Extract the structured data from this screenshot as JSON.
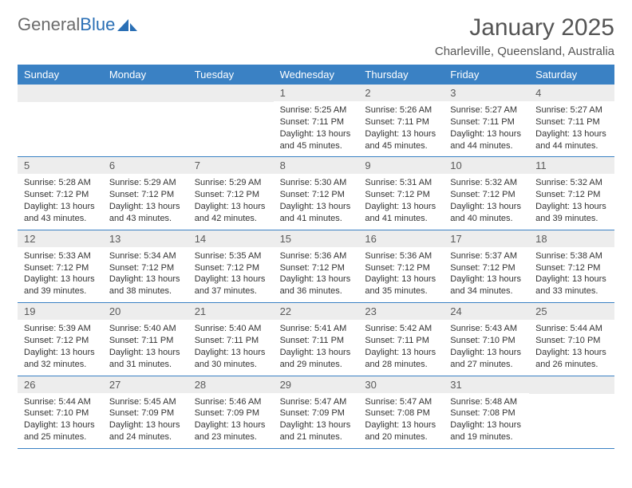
{
  "logo": {
    "text1": "General",
    "text2": "Blue"
  },
  "header": {
    "month": "January 2025",
    "location": "Charleville, Queensland, Australia"
  },
  "colors": {
    "header_bg": "#3a81c4",
    "daynum_bg": "#ededed",
    "accent": "#2a6fb5"
  },
  "weekdays": [
    "Sunday",
    "Monday",
    "Tuesday",
    "Wednesday",
    "Thursday",
    "Friday",
    "Saturday"
  ],
  "weeks": [
    [
      null,
      null,
      null,
      {
        "n": "1",
        "sunrise": "5:25 AM",
        "sunset": "7:11 PM",
        "dl": "13 hours and 45 minutes."
      },
      {
        "n": "2",
        "sunrise": "5:26 AM",
        "sunset": "7:11 PM",
        "dl": "13 hours and 45 minutes."
      },
      {
        "n": "3",
        "sunrise": "5:27 AM",
        "sunset": "7:11 PM",
        "dl": "13 hours and 44 minutes."
      },
      {
        "n": "4",
        "sunrise": "5:27 AM",
        "sunset": "7:11 PM",
        "dl": "13 hours and 44 minutes."
      }
    ],
    [
      {
        "n": "5",
        "sunrise": "5:28 AM",
        "sunset": "7:12 PM",
        "dl": "13 hours and 43 minutes."
      },
      {
        "n": "6",
        "sunrise": "5:29 AM",
        "sunset": "7:12 PM",
        "dl": "13 hours and 43 minutes."
      },
      {
        "n": "7",
        "sunrise": "5:29 AM",
        "sunset": "7:12 PM",
        "dl": "13 hours and 42 minutes."
      },
      {
        "n": "8",
        "sunrise": "5:30 AM",
        "sunset": "7:12 PM",
        "dl": "13 hours and 41 minutes."
      },
      {
        "n": "9",
        "sunrise": "5:31 AM",
        "sunset": "7:12 PM",
        "dl": "13 hours and 41 minutes."
      },
      {
        "n": "10",
        "sunrise": "5:32 AM",
        "sunset": "7:12 PM",
        "dl": "13 hours and 40 minutes."
      },
      {
        "n": "11",
        "sunrise": "5:32 AM",
        "sunset": "7:12 PM",
        "dl": "13 hours and 39 minutes."
      }
    ],
    [
      {
        "n": "12",
        "sunrise": "5:33 AM",
        "sunset": "7:12 PM",
        "dl": "13 hours and 39 minutes."
      },
      {
        "n": "13",
        "sunrise": "5:34 AM",
        "sunset": "7:12 PM",
        "dl": "13 hours and 38 minutes."
      },
      {
        "n": "14",
        "sunrise": "5:35 AM",
        "sunset": "7:12 PM",
        "dl": "13 hours and 37 minutes."
      },
      {
        "n": "15",
        "sunrise": "5:36 AM",
        "sunset": "7:12 PM",
        "dl": "13 hours and 36 minutes."
      },
      {
        "n": "16",
        "sunrise": "5:36 AM",
        "sunset": "7:12 PM",
        "dl": "13 hours and 35 minutes."
      },
      {
        "n": "17",
        "sunrise": "5:37 AM",
        "sunset": "7:12 PM",
        "dl": "13 hours and 34 minutes."
      },
      {
        "n": "18",
        "sunrise": "5:38 AM",
        "sunset": "7:12 PM",
        "dl": "13 hours and 33 minutes."
      }
    ],
    [
      {
        "n": "19",
        "sunrise": "5:39 AM",
        "sunset": "7:12 PM",
        "dl": "13 hours and 32 minutes."
      },
      {
        "n": "20",
        "sunrise": "5:40 AM",
        "sunset": "7:11 PM",
        "dl": "13 hours and 31 minutes."
      },
      {
        "n": "21",
        "sunrise": "5:40 AM",
        "sunset": "7:11 PM",
        "dl": "13 hours and 30 minutes."
      },
      {
        "n": "22",
        "sunrise": "5:41 AM",
        "sunset": "7:11 PM",
        "dl": "13 hours and 29 minutes."
      },
      {
        "n": "23",
        "sunrise": "5:42 AM",
        "sunset": "7:11 PM",
        "dl": "13 hours and 28 minutes."
      },
      {
        "n": "24",
        "sunrise": "5:43 AM",
        "sunset": "7:10 PM",
        "dl": "13 hours and 27 minutes."
      },
      {
        "n": "25",
        "sunrise": "5:44 AM",
        "sunset": "7:10 PM",
        "dl": "13 hours and 26 minutes."
      }
    ],
    [
      {
        "n": "26",
        "sunrise": "5:44 AM",
        "sunset": "7:10 PM",
        "dl": "13 hours and 25 minutes."
      },
      {
        "n": "27",
        "sunrise": "5:45 AM",
        "sunset": "7:09 PM",
        "dl": "13 hours and 24 minutes."
      },
      {
        "n": "28",
        "sunrise": "5:46 AM",
        "sunset": "7:09 PM",
        "dl": "13 hours and 23 minutes."
      },
      {
        "n": "29",
        "sunrise": "5:47 AM",
        "sunset": "7:09 PM",
        "dl": "13 hours and 21 minutes."
      },
      {
        "n": "30",
        "sunrise": "5:47 AM",
        "sunset": "7:08 PM",
        "dl": "13 hours and 20 minutes."
      },
      {
        "n": "31",
        "sunrise": "5:48 AM",
        "sunset": "7:08 PM",
        "dl": "13 hours and 19 minutes."
      },
      null
    ]
  ]
}
